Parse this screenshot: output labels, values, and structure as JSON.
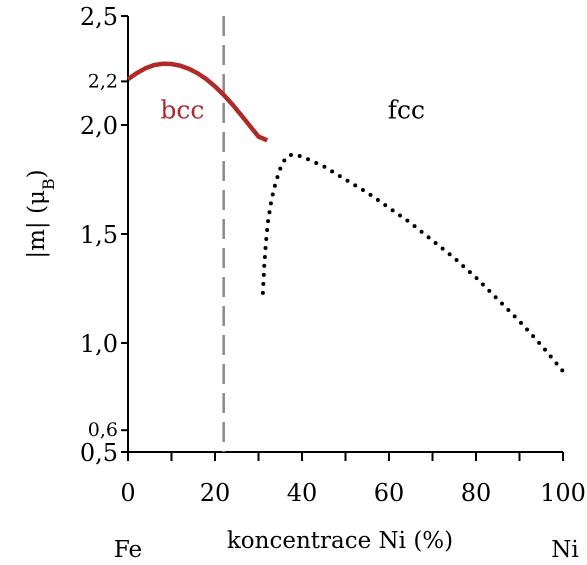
{
  "chart_data": {
    "type": "line",
    "xlabel": "koncentrace Ni (%)",
    "ylabel": "|m| (μB)",
    "ylabel_main": "|m| (μ",
    "ylabel_sub": "B",
    "ylabel_close": ")",
    "xlim": [
      0,
      100
    ],
    "ylim": [
      0.5,
      2.5
    ],
    "x_ticks": [
      {
        "value": 0,
        "label": "0"
      },
      {
        "value": 20,
        "label": "20"
      },
      {
        "value": 40,
        "label": "40"
      },
      {
        "value": 60,
        "label": "60"
      },
      {
        "value": 80,
        "label": "80"
      },
      {
        "value": 100,
        "label": "100"
      }
    ],
    "x_minor_ticks": [
      10,
      30,
      50,
      70,
      90
    ],
    "y_ticks": [
      {
        "value": 2.5,
        "label": "2,5",
        "size": "large"
      },
      {
        "value": 2.2,
        "label": "2,2",
        "size": "small"
      },
      {
        "value": 2.0,
        "label": "2,0",
        "size": "large"
      },
      {
        "value": 1.5,
        "label": "1,5",
        "size": "large"
      },
      {
        "value": 1.0,
        "label": "1,0",
        "size": "large"
      },
      {
        "value": 0.6,
        "label": "0,6",
        "size": "small"
      },
      {
        "value": 0.5,
        "label": "0,5",
        "size": "large"
      }
    ],
    "axis_end_labels": {
      "left": "Fe",
      "right": "Ni"
    },
    "phase_boundary_x": 22,
    "series": [
      {
        "name": "bcc",
        "style": "solid",
        "color": "#b02a2a",
        "x": [
          0,
          2,
          4,
          6,
          8,
          10,
          12,
          14,
          16,
          18,
          20,
          22,
          24,
          26,
          28,
          30,
          32
        ],
        "y": [
          2.21,
          2.238,
          2.26,
          2.275,
          2.281,
          2.28,
          2.272,
          2.258,
          2.237,
          2.21,
          2.177,
          2.138,
          2.094,
          2.046,
          1.996,
          1.947,
          1.93
        ]
      },
      {
        "name": "fcc",
        "style": "dotted",
        "color": "#000000",
        "x": [
          31,
          31.3,
          31.7,
          32.2,
          33,
          34,
          35,
          36,
          37,
          38,
          40,
          45,
          50,
          55,
          60,
          65,
          70,
          75,
          80,
          85,
          90,
          95,
          100
        ],
        "y": [
          1.23,
          1.35,
          1.46,
          1.56,
          1.66,
          1.74,
          1.8,
          1.84,
          1.86,
          1.865,
          1.855,
          1.81,
          1.75,
          1.69,
          1.62,
          1.55,
          1.47,
          1.39,
          1.3,
          1.2,
          1.1,
          0.99,
          0.87
        ]
      }
    ],
    "region_labels": [
      {
        "text": "bcc",
        "x": 12.5,
        "y": 2.03,
        "color": "#b02a2a"
      },
      {
        "text": "fcc",
        "x": 64,
        "y": 2.03,
        "color": "#000000"
      }
    ]
  }
}
